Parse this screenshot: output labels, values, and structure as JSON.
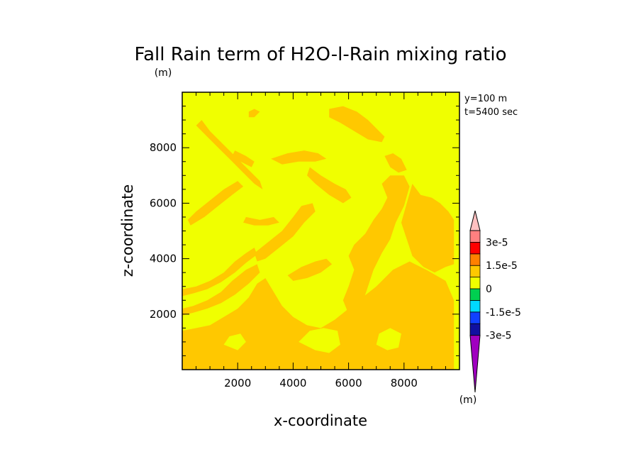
{
  "chart_data": {
    "type": "contour",
    "title": "Fall Rain term of H2O-l-Rain mixing ratio",
    "title_unit": "(m)",
    "xlabel": "x-coordinate",
    "ylabel": "z-coordinate",
    "info": [
      "y=100 m",
      "t=5400 sec"
    ],
    "xlim": [
      0,
      10000
    ],
    "ylim": [
      0,
      10000
    ],
    "x_ticks": [
      2000,
      4000,
      6000,
      8000
    ],
    "y_ticks": [
      2000,
      4000,
      6000,
      8000
    ],
    "x_tick_labels": [
      "2000",
      "4000",
      "6000",
      "8000"
    ],
    "y_tick_labels": [
      "2000",
      "4000",
      "6000",
      "8000"
    ],
    "background_color": "#f0ff00",
    "colorbar": {
      "unit": "(m)",
      "colors": [
        "#a000c0",
        "#1010a0",
        "#1040ff",
        "#00d8ff",
        "#00d050",
        "#f0ff00",
        "#ffc800",
        "#ff8000",
        "#ff0000",
        "#ff8080",
        "#ffc0c0"
      ],
      "labels": [
        "-3e-5",
        "-1.5e-5",
        "0",
        "1.5e-5",
        "3e-5"
      ]
    },
    "contour_regions": [
      {
        "color": "#ffc800",
        "points": [
          [
            0,
            0
          ],
          [
            9800,
            0
          ],
          [
            9800,
            2500
          ],
          [
            9500,
            3200
          ],
          [
            8800,
            3600
          ],
          [
            8200,
            3900
          ],
          [
            7600,
            3600
          ],
          [
            7000,
            3000
          ],
          [
            6500,
            2600
          ],
          [
            6000,
            2200
          ],
          [
            5500,
            1800
          ],
          [
            5000,
            1500
          ],
          [
            4500,
            1600
          ],
          [
            4000,
            1900
          ],
          [
            3600,
            2300
          ],
          [
            3300,
            2800
          ],
          [
            3000,
            3300
          ],
          [
            2700,
            3100
          ],
          [
            2400,
            2600
          ],
          [
            2000,
            2200
          ],
          [
            1500,
            1900
          ],
          [
            1000,
            1600
          ],
          [
            500,
            1500
          ],
          [
            0,
            1400
          ]
        ]
      },
      {
        "color": "#ffc800",
        "points": [
          [
            0,
            2200
          ],
          [
            400,
            2300
          ],
          [
            900,
            2500
          ],
          [
            1400,
            2800
          ],
          [
            1800,
            3200
          ],
          [
            2300,
            3600
          ],
          [
            2700,
            3800
          ],
          [
            2800,
            3500
          ],
          [
            2400,
            3100
          ],
          [
            1900,
            2700
          ],
          [
            1400,
            2400
          ],
          [
            900,
            2200
          ],
          [
            400,
            2050
          ],
          [
            0,
            1950
          ]
        ]
      },
      {
        "color": "#ffc800",
        "points": [
          [
            0,
            2900
          ],
          [
            500,
            3000
          ],
          [
            1000,
            3200
          ],
          [
            1500,
            3500
          ],
          [
            1900,
            3900
          ],
          [
            2300,
            4200
          ],
          [
            2600,
            4400
          ],
          [
            2700,
            4150
          ],
          [
            2300,
            3850
          ],
          [
            1900,
            3500
          ],
          [
            1400,
            3150
          ],
          [
            900,
            2900
          ],
          [
            400,
            2750
          ],
          [
            0,
            2650
          ]
        ]
      },
      {
        "color": "#ffc800",
        "points": [
          [
            6000,
            2000
          ],
          [
            6500,
            2400
          ],
          [
            6700,
            3000
          ],
          [
            6900,
            3600
          ],
          [
            7200,
            4200
          ],
          [
            7500,
            4700
          ],
          [
            7700,
            5300
          ],
          [
            8000,
            5900
          ],
          [
            8200,
            6600
          ],
          [
            8000,
            7000
          ],
          [
            7500,
            7000
          ],
          [
            7200,
            6700
          ],
          [
            7400,
            6200
          ],
          [
            7200,
            5800
          ],
          [
            6900,
            5400
          ],
          [
            6600,
            4900
          ],
          [
            6200,
            4500
          ],
          [
            6000,
            4100
          ],
          [
            6200,
            3600
          ],
          [
            6000,
            3000
          ],
          [
            5800,
            2500
          ]
        ]
      },
      {
        "color": "#ffc800",
        "points": [
          [
            8300,
            6700
          ],
          [
            8600,
            6300
          ],
          [
            9000,
            6200
          ],
          [
            9300,
            6000
          ],
          [
            9600,
            5700
          ],
          [
            9800,
            5400
          ],
          [
            9800,
            3800
          ],
          [
            9500,
            3700
          ],
          [
            9100,
            3500
          ],
          [
            8700,
            3700
          ],
          [
            8300,
            4100
          ],
          [
            8100,
            4700
          ],
          [
            7900,
            5300
          ],
          [
            8100,
            6000
          ]
        ]
      },
      {
        "color": "#ffc800",
        "points": [
          [
            2600,
            4200
          ],
          [
            3100,
            4600
          ],
          [
            3600,
            5000
          ],
          [
            4000,
            5500
          ],
          [
            4300,
            5900
          ],
          [
            4700,
            6000
          ],
          [
            4800,
            5700
          ],
          [
            4400,
            5300
          ],
          [
            4000,
            4800
          ],
          [
            3500,
            4400
          ],
          [
            3000,
            4000
          ],
          [
            2700,
            3900
          ]
        ]
      },
      {
        "color": "#ffc800",
        "points": [
          [
            3800,
            3400
          ],
          [
            4300,
            3700
          ],
          [
            4800,
            3900
          ],
          [
            5200,
            4000
          ],
          [
            5400,
            3800
          ],
          [
            5000,
            3500
          ],
          [
            4500,
            3300
          ],
          [
            4000,
            3200
          ]
        ]
      },
      {
        "color": "#ffc800",
        "points": [
          [
            500,
            8800
          ],
          [
            900,
            8400
          ],
          [
            1300,
            8000
          ],
          [
            1700,
            7600
          ],
          [
            2200,
            7100
          ],
          [
            2600,
            6700
          ],
          [
            2900,
            6500
          ],
          [
            2800,
            6800
          ],
          [
            2400,
            7200
          ],
          [
            1900,
            7700
          ],
          [
            1400,
            8200
          ],
          [
            1000,
            8600
          ],
          [
            700,
            9000
          ]
        ]
      },
      {
        "color": "#ffc800",
        "points": [
          [
            300,
            5200
          ],
          [
            800,
            5500
          ],
          [
            1300,
            5900
          ],
          [
            1800,
            6300
          ],
          [
            2200,
            6600
          ],
          [
            2000,
            6800
          ],
          [
            1500,
            6500
          ],
          [
            1000,
            6100
          ],
          [
            500,
            5700
          ],
          [
            200,
            5400
          ]
        ]
      },
      {
        "color": "#ffc800",
        "points": [
          [
            5300,
            9400
          ],
          [
            5800,
            9500
          ],
          [
            6300,
            9300
          ],
          [
            6700,
            9000
          ],
          [
            7300,
            8400
          ],
          [
            7200,
            8200
          ],
          [
            6700,
            8300
          ],
          [
            6200,
            8600
          ],
          [
            5700,
            8900
          ],
          [
            5300,
            9100
          ]
        ]
      },
      {
        "color": "#ffc800",
        "points": [
          [
            3200,
            7600
          ],
          [
            3800,
            7800
          ],
          [
            4400,
            7900
          ],
          [
            4900,
            7800
          ],
          [
            5200,
            7600
          ],
          [
            4800,
            7500
          ],
          [
            4200,
            7500
          ],
          [
            3600,
            7400
          ]
        ]
      },
      {
        "color": "#ffc800",
        "points": [
          [
            4600,
            7300
          ],
          [
            5000,
            7000
          ],
          [
            5500,
            6700
          ],
          [
            5900,
            6500
          ],
          [
            6100,
            6200
          ],
          [
            5800,
            6000
          ],
          [
            5300,
            6300
          ],
          [
            4800,
            6700
          ],
          [
            4500,
            7000
          ]
        ]
      },
      {
        "color": "#ffc800",
        "points": [
          [
            1900,
            7900
          ],
          [
            2300,
            7700
          ],
          [
            2600,
            7500
          ],
          [
            2500,
            7300
          ],
          [
            2100,
            7500
          ],
          [
            1800,
            7700
          ]
        ]
      },
      {
        "color": "#ffc800",
        "points": [
          [
            2300,
            5500
          ],
          [
            2800,
            5400
          ],
          [
            3300,
            5500
          ],
          [
            3500,
            5300
          ],
          [
            3100,
            5200
          ],
          [
            2600,
            5200
          ],
          [
            2200,
            5300
          ]
        ]
      },
      {
        "color": "#ffc800",
        "points": [
          [
            2400,
            9300
          ],
          [
            2600,
            9400
          ],
          [
            2800,
            9300
          ],
          [
            2600,
            9100
          ],
          [
            2400,
            9100
          ]
        ]
      },
      {
        "color": "#ffc800",
        "points": [
          [
            7300,
            7700
          ],
          [
            7600,
            7800
          ],
          [
            7900,
            7600
          ],
          [
            8100,
            7200
          ],
          [
            7800,
            7100
          ],
          [
            7500,
            7300
          ]
        ]
      },
      {
        "color": "#f0ff00",
        "points": [
          [
            4200,
            1000
          ],
          [
            4800,
            700
          ],
          [
            5300,
            600
          ],
          [
            5700,
            900
          ],
          [
            5600,
            1400
          ],
          [
            5100,
            1500
          ],
          [
            4600,
            1400
          ]
        ]
      },
      {
        "color": "#f0ff00",
        "points": [
          [
            7000,
            900
          ],
          [
            7400,
            700
          ],
          [
            7800,
            800
          ],
          [
            7900,
            1300
          ],
          [
            7500,
            1500
          ],
          [
            7100,
            1300
          ]
        ]
      },
      {
        "color": "#f0ff00",
        "points": [
          [
            1500,
            900
          ],
          [
            2000,
            700
          ],
          [
            2300,
            1000
          ],
          [
            2100,
            1300
          ],
          [
            1700,
            1200
          ]
        ]
      }
    ]
  }
}
